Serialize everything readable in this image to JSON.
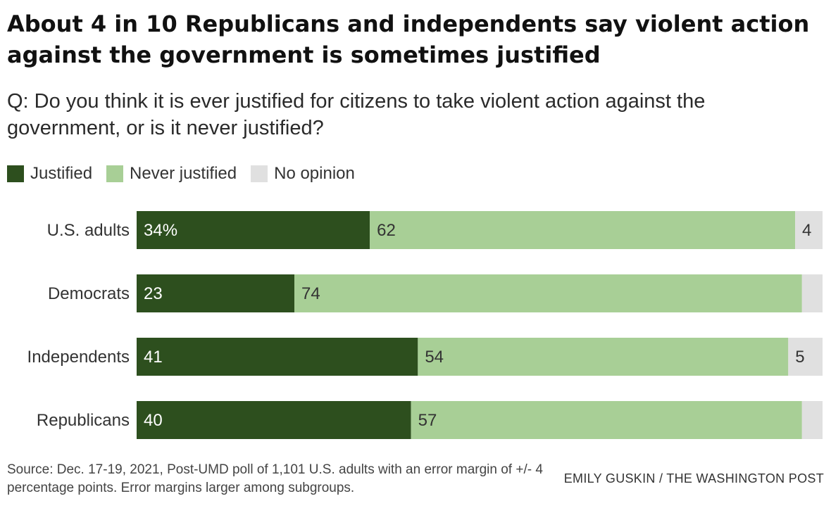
{
  "header": {
    "title": "About 4 in 10 Republicans and independents say violent action against the government is sometimes justified",
    "question": "Q: Do you think it is ever justified for citizens to take violent action against the government, or is it never justified?"
  },
  "footer": {
    "source": "Source: Dec. 17-19, 2021, Post-UMD poll of 1,101 U.S. adults with an error margin of +/- 4 percentage points. Error margins larger among subgroups.",
    "credit": "EMILY GUSKIN / THE WASHINGTON POST"
  },
  "colors": {
    "justified": "#2d4f1e",
    "never_justified": "#a8cf96",
    "no_opinion": "#e0e0e0"
  },
  "chart_data": {
    "type": "bar",
    "orientation": "horizontal",
    "stacked": true,
    "categories": [
      "U.S. adults",
      "Democrats",
      "Independents",
      "Republicans"
    ],
    "series": [
      {
        "name": "Justified",
        "values": [
          34,
          23,
          41,
          40
        ],
        "labels": [
          "34%",
          "23",
          "41",
          "40"
        ]
      },
      {
        "name": "Never justified",
        "values": [
          62,
          74,
          54,
          57
        ],
        "labels": [
          "62",
          "74",
          "54",
          "57"
        ]
      },
      {
        "name": "No opinion",
        "values": [
          4,
          3,
          5,
          3
        ],
        "labels": [
          "4",
          "",
          "5",
          ""
        ]
      }
    ],
    "xlim": [
      0,
      100
    ],
    "grid": false,
    "legend": "top-left"
  }
}
